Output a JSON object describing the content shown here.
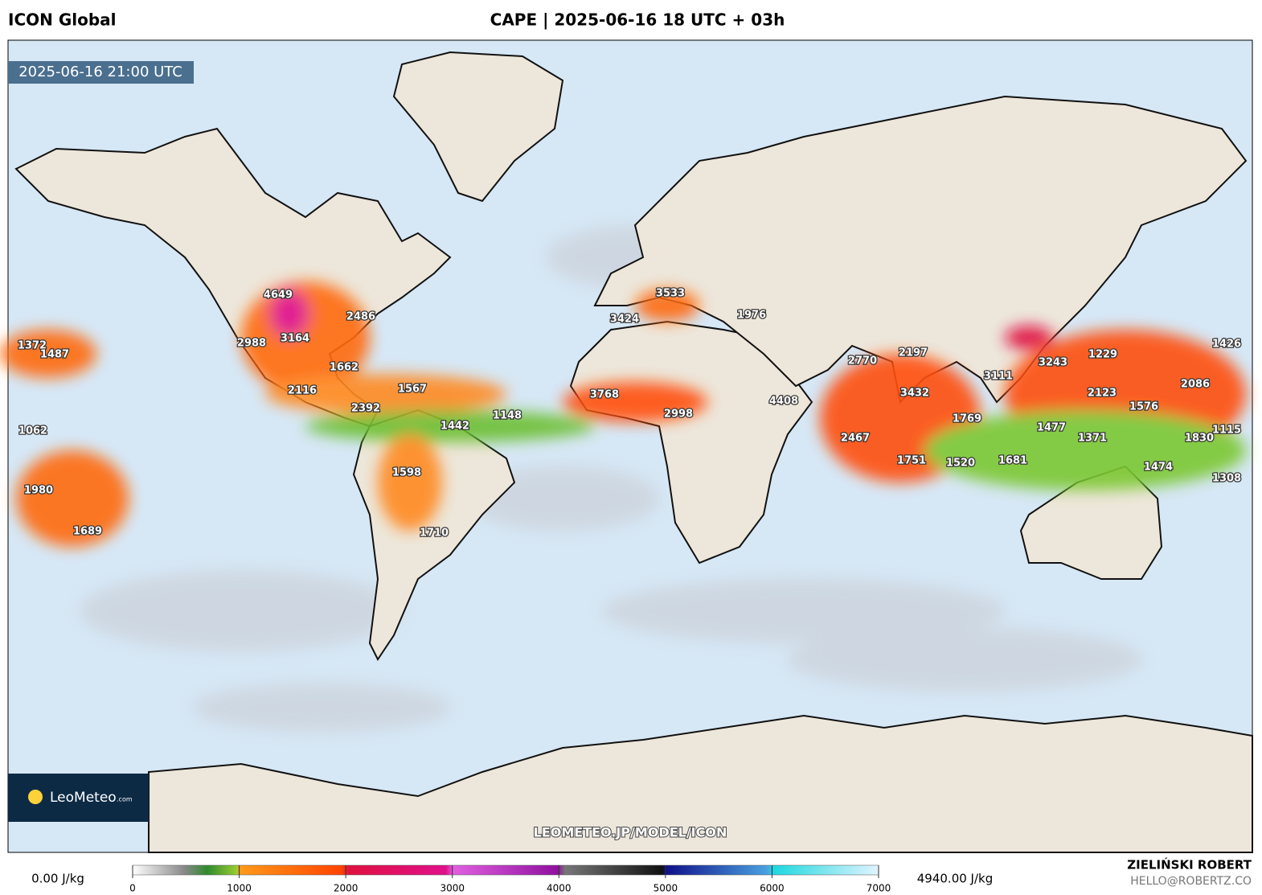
{
  "header": {
    "model": "ICON Global",
    "title": "CAPE | 2025-06-16 18 UTC + 03h"
  },
  "map": {
    "valid_time": "2025-06-16 21:00 UTC",
    "watermark": "LEOMETEO.JP/MODEL/ICON",
    "labels": [
      4649,
      2486,
      3164,
      2988,
      1372,
      1487,
      1662,
      1567,
      2116,
      2392,
      1442,
      1148,
      1062,
      1598,
      1980,
      1689,
      1710,
      3533,
      3424,
      1976,
      3768,
      2998,
      4408,
      2770,
      2197,
      3432,
      3111,
      3243,
      1229,
      1426,
      2086,
      2123,
      1576,
      1769,
      2467,
      1477,
      1371,
      1830,
      1115,
      1751,
      1520,
      1681,
      1474,
      1308
    ]
  },
  "logo": {
    "name": "LeoMeteo",
    "suffix": ".com"
  },
  "colorbar": {
    "min_label": "0.00 J/kg",
    "max_label": "4940.00 J/kg",
    "ticks": [
      0,
      1000,
      2000,
      3000,
      4000,
      5000,
      6000,
      7000
    ]
  },
  "footer": {
    "author": "ZIELIŃSKI ROBERT",
    "email": "HELLO@ROBERTZ.CO"
  }
}
